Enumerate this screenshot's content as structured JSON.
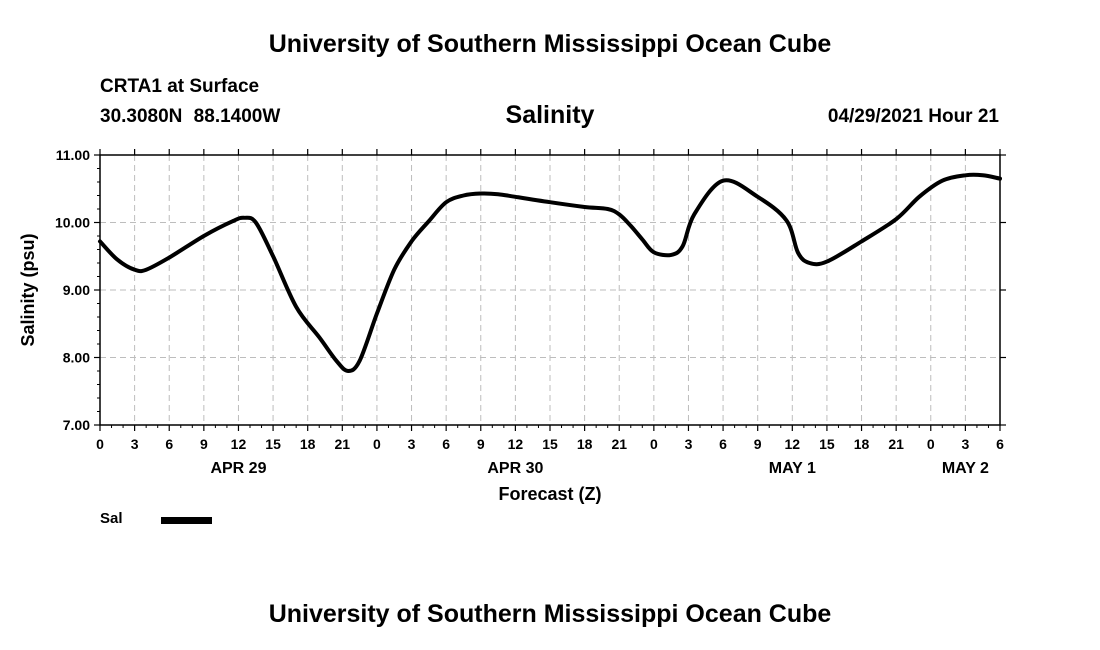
{
  "header": {
    "title": "University of Southern Mississippi Ocean Cube",
    "station": "CRTA1 at Surface",
    "coordinates": "30.3080N 88.1400W",
    "variable": "Salinity",
    "datetime": "04/29/2021 Hour 21"
  },
  "legend": {
    "label": "Sal",
    "color": "#000000"
  },
  "footer": {
    "title": "University of Southern Mississippi Ocean Cube"
  },
  "chart_data": {
    "type": "line",
    "title": "Salinity",
    "xlabel": "Forecast (Z)",
    "ylabel": "Salinity (psu)",
    "ylim": [
      7.0,
      11.0
    ],
    "y_ticks": [
      "7.00",
      "8.00",
      "9.00",
      "10.00",
      "11.00"
    ],
    "x_unit": "hours from APR 29 00Z",
    "xlim": [
      0,
      78
    ],
    "x_ticks": [
      {
        "hour": 0,
        "label": "0"
      },
      {
        "hour": 3,
        "label": "3"
      },
      {
        "hour": 6,
        "label": "6"
      },
      {
        "hour": 9,
        "label": "9"
      },
      {
        "hour": 12,
        "label": "12"
      },
      {
        "hour": 15,
        "label": "15"
      },
      {
        "hour": 18,
        "label": "18"
      },
      {
        "hour": 21,
        "label": "21"
      },
      {
        "hour": 24,
        "label": "0"
      },
      {
        "hour": 27,
        "label": "3"
      },
      {
        "hour": 30,
        "label": "6"
      },
      {
        "hour": 33,
        "label": "9"
      },
      {
        "hour": 36,
        "label": "12"
      },
      {
        "hour": 39,
        "label": "15"
      },
      {
        "hour": 42,
        "label": "18"
      },
      {
        "hour": 45,
        "label": "21"
      },
      {
        "hour": 48,
        "label": "0"
      },
      {
        "hour": 51,
        "label": "3"
      },
      {
        "hour": 54,
        "label": "6"
      },
      {
        "hour": 57,
        "label": "9"
      },
      {
        "hour": 60,
        "label": "12"
      },
      {
        "hour": 63,
        "label": "15"
      },
      {
        "hour": 66,
        "label": "18"
      },
      {
        "hour": 69,
        "label": "21"
      },
      {
        "hour": 72,
        "label": "0"
      },
      {
        "hour": 75,
        "label": "3"
      },
      {
        "hour": 78,
        "label": "6"
      }
    ],
    "date_labels": [
      {
        "hour": 12,
        "label": "APR 29"
      },
      {
        "hour": 36,
        "label": "APR 30"
      },
      {
        "hour": 60,
        "label": "MAY 1"
      },
      {
        "hour": 75,
        "label": "MAY 2"
      }
    ],
    "grid": true,
    "series": [
      {
        "name": "Sal",
        "x": [
          0,
          1.5,
          3,
          4,
          6,
          9,
          11.5,
          12.5,
          13.5,
          15,
          17,
          19,
          20.5,
          21.5,
          22.5,
          24,
          25.5,
          27,
          28.5,
          30,
          31.5,
          33,
          34.5,
          36,
          39,
          42,
          44,
          45,
          46,
          47,
          48,
          49.5,
          50.5,
          51.5,
          54,
          57,
          59.5,
          60.5,
          61.5,
          63,
          66,
          69,
          71,
          73,
          75,
          76.5,
          78
        ],
        "values": [
          9.72,
          9.45,
          9.3,
          9.3,
          9.48,
          9.8,
          10.02,
          10.07,
          10.0,
          9.5,
          8.75,
          8.3,
          7.95,
          7.8,
          7.95,
          8.65,
          9.3,
          9.72,
          10.02,
          10.3,
          10.4,
          10.43,
          10.42,
          10.38,
          10.3,
          10.23,
          10.2,
          10.12,
          9.95,
          9.75,
          9.56,
          9.52,
          9.65,
          10.12,
          10.62,
          10.38,
          10.03,
          9.55,
          9.4,
          9.42,
          9.72,
          10.05,
          10.38,
          10.62,
          10.7,
          10.7,
          10.65
        ]
      }
    ]
  }
}
